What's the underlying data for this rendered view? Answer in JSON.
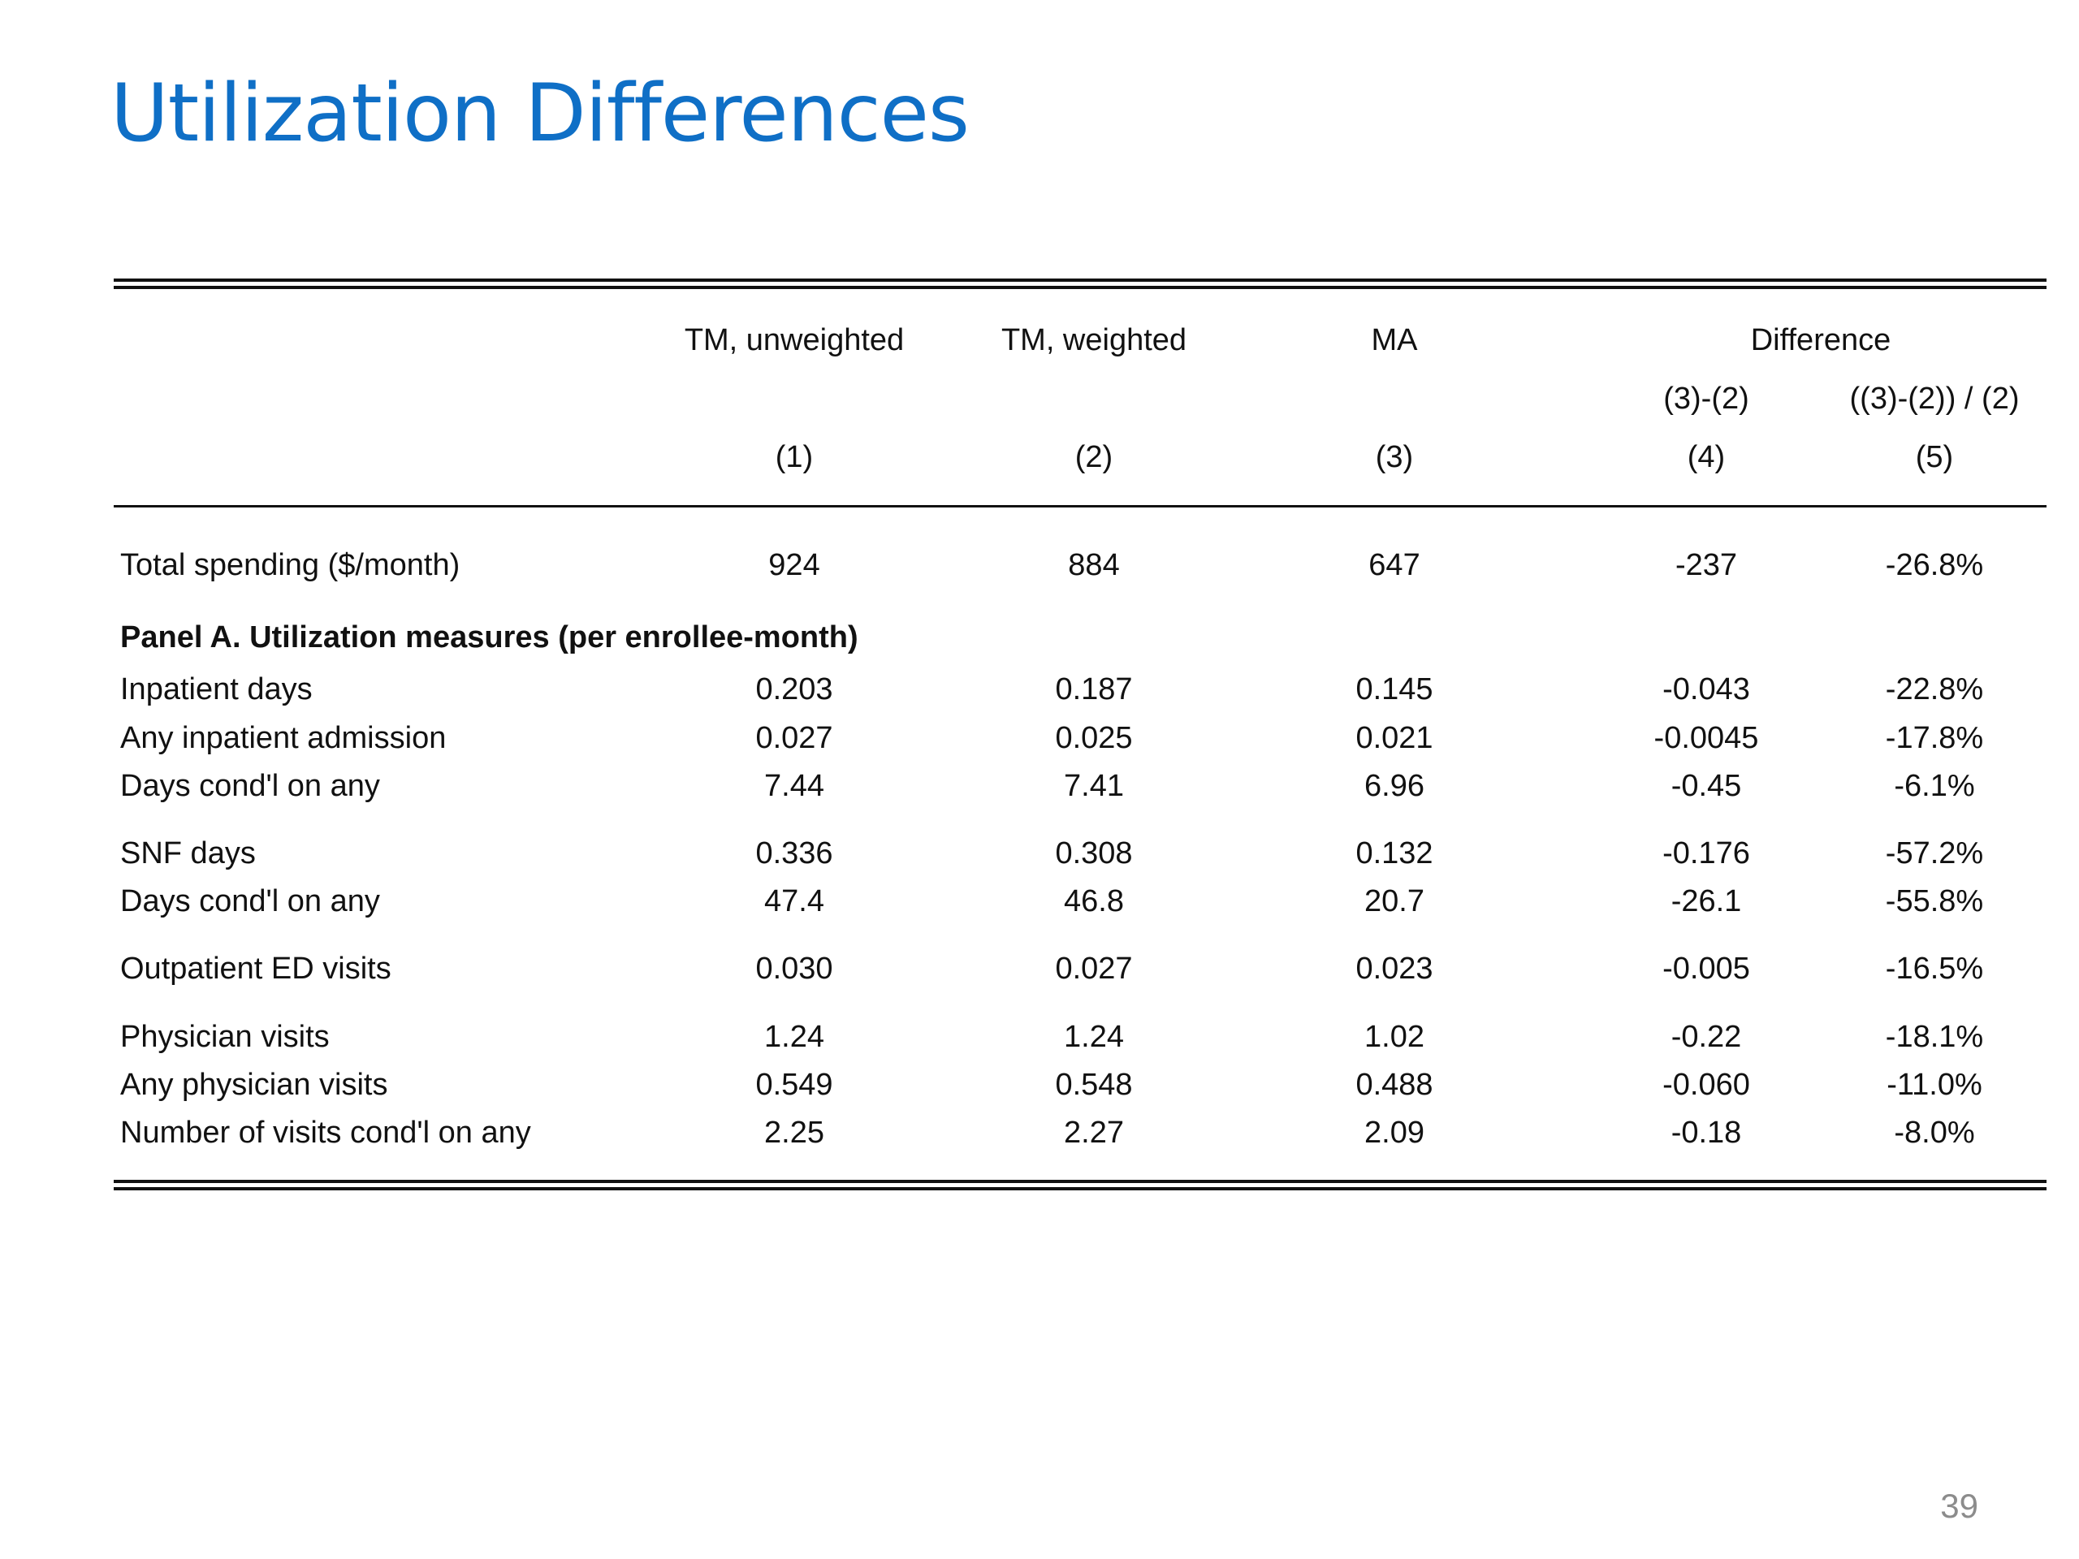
{
  "title": "Utilization Differences",
  "colors": {
    "title": "#0f6fc6",
    "text": "#111111",
    "page_number": "#8c8c8c"
  },
  "table": {
    "header": {
      "col1": "TM, unweighted",
      "col2": "TM, weighted",
      "col3": "MA",
      "difference_group": "Difference",
      "col4_sub": "(3)-(2)",
      "col5_sub": "((3)-(2)) / (2)",
      "numbers": [
        "(1)",
        "(2)",
        "(3)",
        "(4)",
        "(5)"
      ]
    },
    "total_row": {
      "label": "Total spending ($/month)",
      "values": [
        "924",
        "884",
        "647",
        "-237",
        "-26.8%"
      ]
    },
    "panel_a_heading": "Panel A. Utilization measures (per enrollee-month)",
    "rows": [
      {
        "label": "Inpatient days",
        "values": [
          "0.203",
          "0.187",
          "0.145",
          "-0.043",
          "-22.8%"
        ]
      },
      {
        "label": "Any inpatient admission",
        "values": [
          "0.027",
          "0.025",
          "0.021",
          "-0.0045",
          "-17.8%"
        ]
      },
      {
        "label": "Days cond'l on any",
        "values": [
          "7.44",
          "7.41",
          "6.96",
          "-0.45",
          "-6.1%"
        ]
      },
      {
        "label": "SNF days",
        "values": [
          "0.336",
          "0.308",
          "0.132",
          "-0.176",
          "-57.2%"
        ]
      },
      {
        "label": "Days cond'l on any",
        "values": [
          "47.4",
          "46.8",
          "20.7",
          "-26.1",
          "-55.8%"
        ]
      },
      {
        "label": "Outpatient ED visits",
        "values": [
          "0.030",
          "0.027",
          "0.023",
          "-0.005",
          "-16.5%"
        ]
      },
      {
        "label": "Physician visits",
        "values": [
          "1.24",
          "1.24",
          "1.02",
          "-0.22",
          "-18.1%"
        ]
      },
      {
        "label": "Any physician visits",
        "values": [
          "0.549",
          "0.548",
          "0.488",
          "-0.060",
          "-11.0%"
        ]
      },
      {
        "label": "Number of visits cond'l on any",
        "values": [
          "2.25",
          "2.27",
          "2.09",
          "-0.18",
          "-8.0%"
        ]
      }
    ]
  },
  "page_number": "39"
}
